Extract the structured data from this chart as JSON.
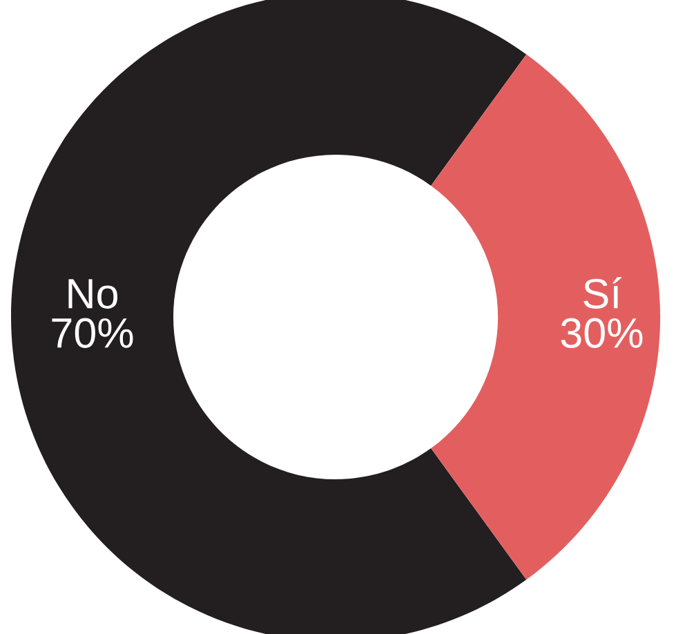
{
  "chart_data": {
    "type": "donut",
    "categories": [
      "No",
      "Sí"
    ],
    "values": [
      70,
      30
    ],
    "value_labels": [
      "70%",
      "30%"
    ],
    "colors": [
      "#231f20",
      "#e35f5f"
    ]
  }
}
